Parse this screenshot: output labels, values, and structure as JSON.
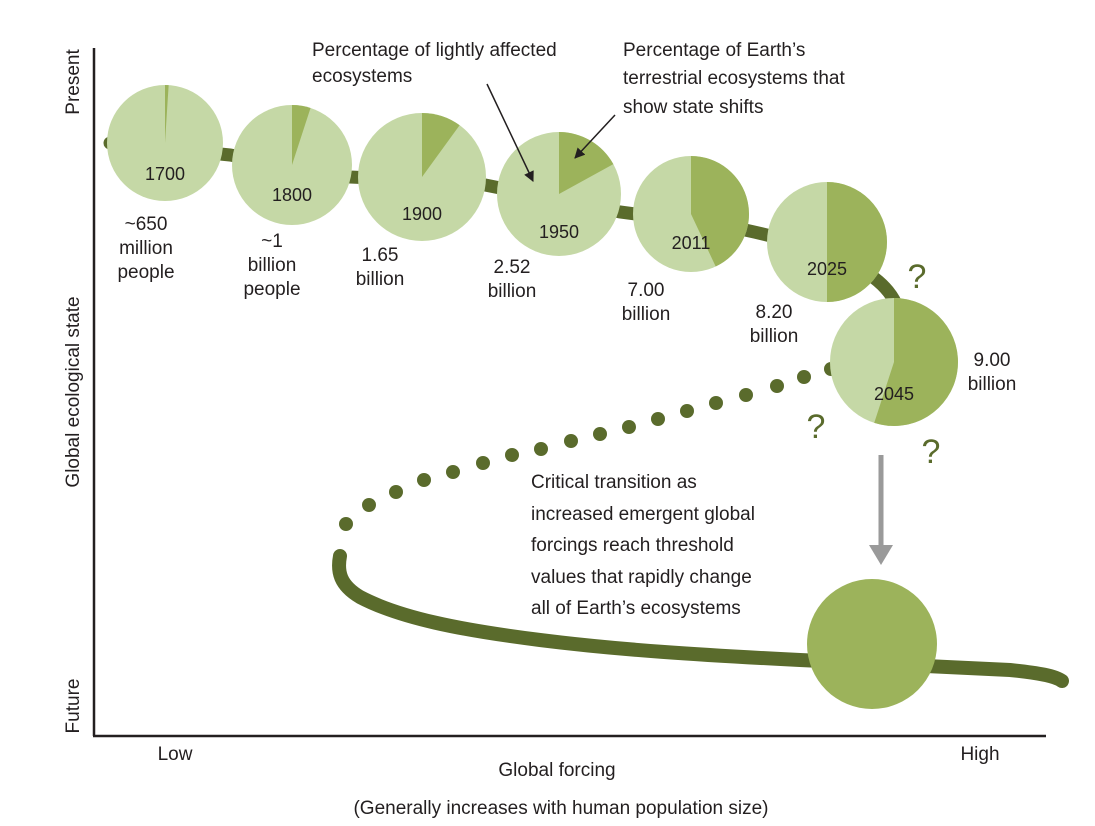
{
  "axes": {
    "y_label": "Global ecological state",
    "y_top": "Present",
    "y_bottom": "Future",
    "x_label": "Global forcing",
    "x_low": "Low",
    "x_high": "High",
    "x_note": "(Generally increases with human population size)"
  },
  "annotations": {
    "lightly_affected": [
      "Percentage of lightly affected",
      "ecosystems"
    ],
    "state_shifts": [
      "Percentage of Earth’s",
      "terrestrial ecosystems that",
      "show state shifts"
    ],
    "transition": [
      "Critical transition as",
      "increased emergent global",
      "forcings reach threshold",
      "values that rapidly change",
      "all of Earth’s ecosystems"
    ],
    "question_mark": "?"
  },
  "colors": {
    "light_green": "#c5d8a6",
    "dark_green": "#9cb35b",
    "path": "#5a6b2c",
    "arrow": "#9a9a9a",
    "axis": "#231f20"
  },
  "timeline": [
    {
      "year": "1700",
      "shift_fraction": 0.01,
      "population": [
        "~650",
        "million",
        "people"
      ]
    },
    {
      "year": "1800",
      "shift_fraction": 0.05,
      "population": [
        "~1",
        "billion",
        "people"
      ]
    },
    {
      "year": "1900",
      "shift_fraction": 0.1,
      "population": [
        "1.65",
        "billion"
      ]
    },
    {
      "year": "1950",
      "shift_fraction": 0.17,
      "population": [
        "2.52",
        "billion"
      ]
    },
    {
      "year": "2011",
      "shift_fraction": 0.43,
      "population": [
        "7.00",
        "billion"
      ]
    },
    {
      "year": "2025",
      "shift_fraction": 0.5,
      "population": [
        "8.20",
        "billion"
      ]
    },
    {
      "year": "2045",
      "shift_fraction": 0.55,
      "population": [
        "9.00",
        "billion"
      ]
    }
  ],
  "future_state_fraction": 1.0
}
